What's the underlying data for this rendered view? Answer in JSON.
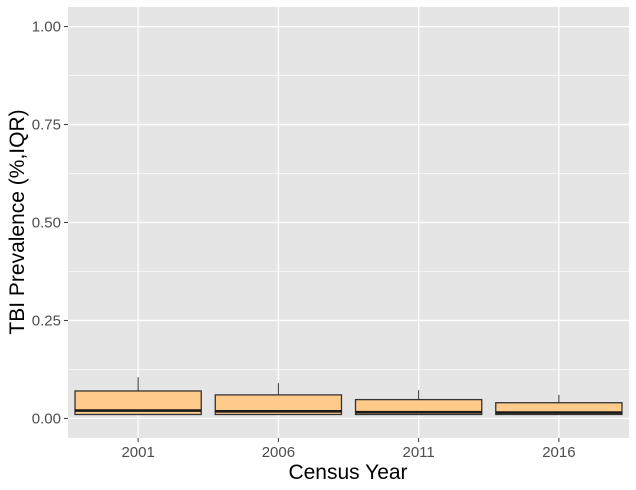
{
  "chart_data": {
    "type": "box",
    "xlabel": "Census Year",
    "ylabel": "TBI Prevalence (%,IQR)",
    "ylim": [
      -0.05,
      1.05
    ],
    "yticks": [
      0.0,
      0.25,
      0.5,
      0.75,
      1.0
    ],
    "ytick_labels": [
      "0.00",
      "0.25",
      "0.50",
      "0.75",
      "1.00"
    ],
    "categories": [
      "2001",
      "2006",
      "2011",
      "2016"
    ],
    "boxes": [
      {
        "category": "2001",
        "whisker_low": 0.01,
        "q1": 0.01,
        "median": 0.02,
        "q3": 0.07,
        "whisker_high": 0.105
      },
      {
        "category": "2006",
        "whisker_low": 0.01,
        "q1": 0.01,
        "median": 0.018,
        "q3": 0.06,
        "whisker_high": 0.09
      },
      {
        "category": "2011",
        "whisker_low": 0.01,
        "q1": 0.01,
        "median": 0.016,
        "q3": 0.048,
        "whisker_high": 0.072
      },
      {
        "category": "2016",
        "whisker_low": 0.01,
        "q1": 0.01,
        "median": 0.015,
        "q3": 0.04,
        "whisker_high": 0.06
      }
    ],
    "grid": true,
    "colors": {
      "panel_background": "#e5e5e5",
      "grid": "#ffffff",
      "box_fill": "#ffca8a",
      "box_stroke": "#333333",
      "median": "#1a1a1a"
    }
  }
}
